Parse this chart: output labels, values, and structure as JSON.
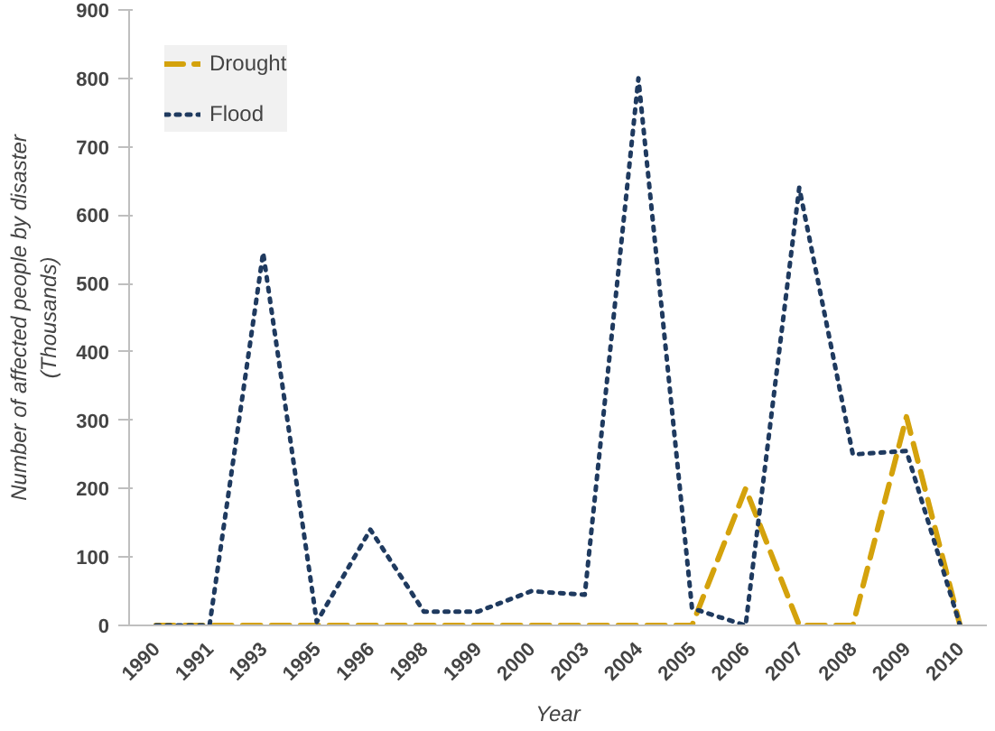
{
  "chart_data": {
    "type": "line",
    "xlabel": "Year",
    "ylabel": "Number of affected people by disaster\n(Thousands)",
    "categories": [
      "1990",
      "1991",
      "1993",
      "1995",
      "1996",
      "1998",
      "1999",
      "2000",
      "2003",
      "2004",
      "2005",
      "2006",
      "2007",
      "2008",
      "2009",
      "2010"
    ],
    "series": [
      {
        "name": "Drought",
        "color": "#d4a20c",
        "line_style": "dashed",
        "values": [
          0,
          0,
          0,
          0,
          0,
          0,
          0,
          0,
          0,
          0,
          0,
          200,
          0,
          0,
          305,
          0
        ]
      },
      {
        "name": "Flood",
        "color": "#1f3a5f",
        "line_style": "dotted",
        "values": [
          0,
          0,
          545,
          5,
          140,
          20,
          20,
          50,
          45,
          800,
          25,
          0,
          640,
          250,
          255,
          0
        ]
      }
    ],
    "ylim": [
      0,
      900
    ],
    "yticks": [
      0,
      100,
      200,
      300,
      400,
      500,
      600,
      700,
      800,
      900
    ],
    "grid": false,
    "legend": "top left"
  }
}
